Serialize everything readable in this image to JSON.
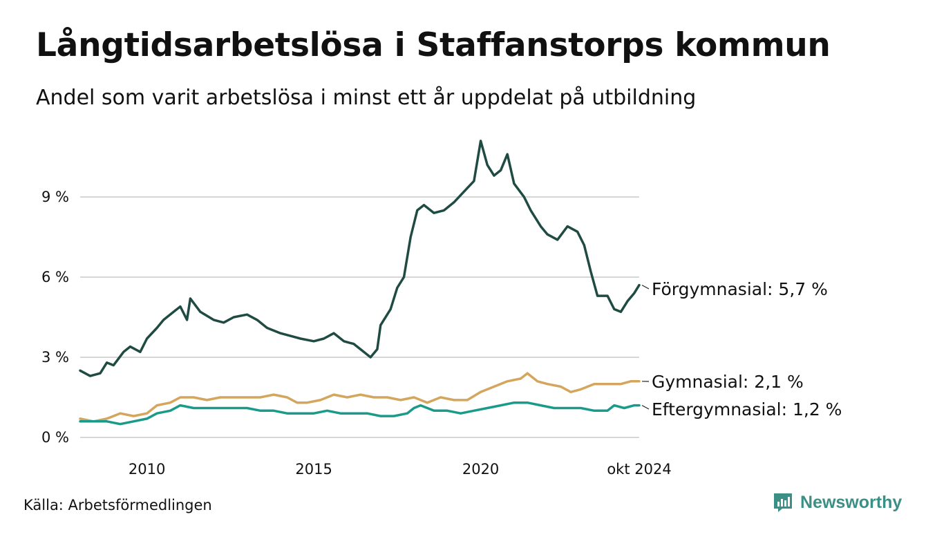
{
  "title": "Långtidsarbetslösa i Staffanstorps kommun",
  "subtitle": "Andel som varit arbetslösa i minst ett år uppdelat på utbildning",
  "source": "Källa: Arbetsförmedlingen",
  "brand": "Newsworthy",
  "chart_data": {
    "type": "line",
    "x_ticks": [
      "2010",
      "2015",
      "2020",
      "okt 2024"
    ],
    "x_tick_values": [
      2010,
      2015,
      2020,
      2024.75
    ],
    "y_ticks": [
      "0 %",
      "3 %",
      "6 %",
      "9 %"
    ],
    "y_tick_values": [
      0,
      3,
      6,
      9
    ],
    "xlim": [
      2008.0,
      2024.75
    ],
    "ylim": [
      0,
      11.2
    ],
    "grid": true,
    "legend": "direct labels at line ends (right)",
    "series": [
      {
        "name": "Förgymnasial",
        "label": "Förgymnasial: 5,7 %",
        "color": "#1f4b43",
        "points": [
          [
            2008.0,
            2.5
          ],
          [
            2008.3,
            2.3
          ],
          [
            2008.6,
            2.4
          ],
          [
            2008.8,
            2.8
          ],
          [
            2009.0,
            2.7
          ],
          [
            2009.3,
            3.2
          ],
          [
            2009.5,
            3.4
          ],
          [
            2009.8,
            3.2
          ],
          [
            2010.0,
            3.7
          ],
          [
            2010.3,
            4.1
          ],
          [
            2010.5,
            4.4
          ],
          [
            2010.8,
            4.7
          ],
          [
            2011.0,
            4.9
          ],
          [
            2011.2,
            4.4
          ],
          [
            2011.3,
            5.2
          ],
          [
            2011.6,
            4.7
          ],
          [
            2012.0,
            4.4
          ],
          [
            2012.3,
            4.3
          ],
          [
            2012.6,
            4.5
          ],
          [
            2013.0,
            4.6
          ],
          [
            2013.3,
            4.4
          ],
          [
            2013.6,
            4.1
          ],
          [
            2014.0,
            3.9
          ],
          [
            2014.3,
            3.8
          ],
          [
            2014.6,
            3.7
          ],
          [
            2015.0,
            3.6
          ],
          [
            2015.3,
            3.7
          ],
          [
            2015.6,
            3.9
          ],
          [
            2015.9,
            3.6
          ],
          [
            2016.2,
            3.5
          ],
          [
            2016.5,
            3.2
          ],
          [
            2016.7,
            3.0
          ],
          [
            2016.9,
            3.3
          ],
          [
            2017.0,
            4.2
          ],
          [
            2017.3,
            4.8
          ],
          [
            2017.5,
            5.6
          ],
          [
            2017.7,
            6.0
          ],
          [
            2017.9,
            7.5
          ],
          [
            2018.1,
            8.5
          ],
          [
            2018.3,
            8.7
          ],
          [
            2018.6,
            8.4
          ],
          [
            2018.9,
            8.5
          ],
          [
            2019.2,
            8.8
          ],
          [
            2019.5,
            9.2
          ],
          [
            2019.8,
            9.6
          ],
          [
            2020.0,
            11.1
          ],
          [
            2020.2,
            10.2
          ],
          [
            2020.4,
            9.8
          ],
          [
            2020.6,
            10.0
          ],
          [
            2020.8,
            10.6
          ],
          [
            2021.0,
            9.5
          ],
          [
            2021.3,
            9.0
          ],
          [
            2021.5,
            8.5
          ],
          [
            2021.8,
            7.9
          ],
          [
            2022.0,
            7.6
          ],
          [
            2022.3,
            7.4
          ],
          [
            2022.6,
            7.9
          ],
          [
            2022.9,
            7.7
          ],
          [
            2023.1,
            7.2
          ],
          [
            2023.3,
            6.2
          ],
          [
            2023.5,
            5.3
          ],
          [
            2023.8,
            5.3
          ],
          [
            2024.0,
            4.8
          ],
          [
            2024.2,
            4.7
          ],
          [
            2024.4,
            5.1
          ],
          [
            2024.6,
            5.4
          ],
          [
            2024.75,
            5.7
          ]
        ]
      },
      {
        "name": "Gymnasial",
        "label": "Gymnasial: 2,1 %",
        "color": "#d4a65d",
        "points": [
          [
            2008.0,
            0.7
          ],
          [
            2008.4,
            0.6
          ],
          [
            2008.8,
            0.7
          ],
          [
            2009.2,
            0.9
          ],
          [
            2009.6,
            0.8
          ],
          [
            2010.0,
            0.9
          ],
          [
            2010.3,
            1.2
          ],
          [
            2010.7,
            1.3
          ],
          [
            2011.0,
            1.5
          ],
          [
            2011.4,
            1.5
          ],
          [
            2011.8,
            1.4
          ],
          [
            2012.2,
            1.5
          ],
          [
            2012.6,
            1.5
          ],
          [
            2013.0,
            1.5
          ],
          [
            2013.4,
            1.5
          ],
          [
            2013.8,
            1.6
          ],
          [
            2014.2,
            1.5
          ],
          [
            2014.5,
            1.3
          ],
          [
            2014.8,
            1.3
          ],
          [
            2015.2,
            1.4
          ],
          [
            2015.6,
            1.6
          ],
          [
            2016.0,
            1.5
          ],
          [
            2016.4,
            1.6
          ],
          [
            2016.8,
            1.5
          ],
          [
            2017.2,
            1.5
          ],
          [
            2017.6,
            1.4
          ],
          [
            2018.0,
            1.5
          ],
          [
            2018.4,
            1.3
          ],
          [
            2018.8,
            1.5
          ],
          [
            2019.2,
            1.4
          ],
          [
            2019.6,
            1.4
          ],
          [
            2020.0,
            1.7
          ],
          [
            2020.4,
            1.9
          ],
          [
            2020.8,
            2.1
          ],
          [
            2021.2,
            2.2
          ],
          [
            2021.4,
            2.4
          ],
          [
            2021.7,
            2.1
          ],
          [
            2022.0,
            2.0
          ],
          [
            2022.4,
            1.9
          ],
          [
            2022.7,
            1.7
          ],
          [
            2023.0,
            1.8
          ],
          [
            2023.4,
            2.0
          ],
          [
            2023.8,
            2.0
          ],
          [
            2024.2,
            2.0
          ],
          [
            2024.5,
            2.1
          ],
          [
            2024.75,
            2.1
          ]
        ]
      },
      {
        "name": "Eftergymnasial",
        "label": "Eftergymnasial: 1,2 %",
        "color": "#1a9a8a",
        "points": [
          [
            2008.0,
            0.6
          ],
          [
            2008.4,
            0.6
          ],
          [
            2008.8,
            0.6
          ],
          [
            2009.2,
            0.5
          ],
          [
            2009.6,
            0.6
          ],
          [
            2010.0,
            0.7
          ],
          [
            2010.3,
            0.9
          ],
          [
            2010.7,
            1.0
          ],
          [
            2011.0,
            1.2
          ],
          [
            2011.4,
            1.1
          ],
          [
            2011.8,
            1.1
          ],
          [
            2012.2,
            1.1
          ],
          [
            2012.6,
            1.1
          ],
          [
            2013.0,
            1.1
          ],
          [
            2013.4,
            1.0
          ],
          [
            2013.8,
            1.0
          ],
          [
            2014.2,
            0.9
          ],
          [
            2014.6,
            0.9
          ],
          [
            2015.0,
            0.9
          ],
          [
            2015.4,
            1.0
          ],
          [
            2015.8,
            0.9
          ],
          [
            2016.2,
            0.9
          ],
          [
            2016.6,
            0.9
          ],
          [
            2017.0,
            0.8
          ],
          [
            2017.4,
            0.8
          ],
          [
            2017.8,
            0.9
          ],
          [
            2018.0,
            1.1
          ],
          [
            2018.2,
            1.2
          ],
          [
            2018.6,
            1.0
          ],
          [
            2019.0,
            1.0
          ],
          [
            2019.4,
            0.9
          ],
          [
            2019.8,
            1.0
          ],
          [
            2020.2,
            1.1
          ],
          [
            2020.6,
            1.2
          ],
          [
            2021.0,
            1.3
          ],
          [
            2021.4,
            1.3
          ],
          [
            2021.8,
            1.2
          ],
          [
            2022.2,
            1.1
          ],
          [
            2022.6,
            1.1
          ],
          [
            2023.0,
            1.1
          ],
          [
            2023.4,
            1.0
          ],
          [
            2023.8,
            1.0
          ],
          [
            2024.0,
            1.2
          ],
          [
            2024.3,
            1.1
          ],
          [
            2024.6,
            1.2
          ],
          [
            2024.75,
            1.2
          ]
        ]
      }
    ]
  }
}
